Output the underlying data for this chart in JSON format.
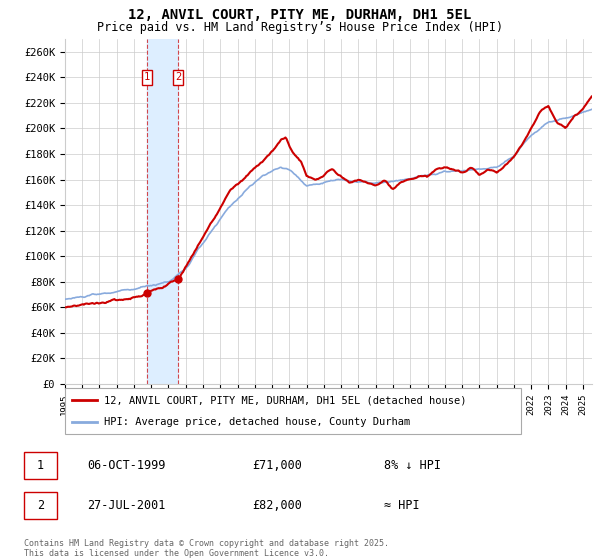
{
  "title": "12, ANVIL COURT, PITY ME, DURHAM, DH1 5EL",
  "subtitle": "Price paid vs. HM Land Registry’s House Price Index (HPI)",
  "title_fontsize": 10,
  "subtitle_fontsize": 8.5,
  "ylabel_ticks": [
    "£0",
    "£20K",
    "£40K",
    "£60K",
    "£80K",
    "£100K",
    "£120K",
    "£140K",
    "£160K",
    "£180K",
    "£200K",
    "£220K",
    "£240K",
    "£260K"
  ],
  "ytick_values": [
    0,
    20000,
    40000,
    60000,
    80000,
    100000,
    120000,
    140000,
    160000,
    180000,
    200000,
    220000,
    240000,
    260000
  ],
  "ylim": [
    0,
    270000
  ],
  "xlim_start": 1995.0,
  "xlim_end": 2025.5,
  "transaction1_x": 1999.76,
  "transaction1_y": 71000,
  "transaction1_label": "1",
  "transaction2_x": 2001.57,
  "transaction2_y": 82000,
  "transaction2_label": "2",
  "legend_line1": "12, ANVIL COURT, PITY ME, DURHAM, DH1 5EL (detached house)",
  "legend_line2": "HPI: Average price, detached house, County Durham",
  "table_row1": [
    "1",
    "06-OCT-1999",
    "£71,000",
    "8% ↓ HPI"
  ],
  "table_row2": [
    "2",
    "27-JUL-2001",
    "£82,000",
    "≈ HPI"
  ],
  "footer": "Contains HM Land Registry data © Crown copyright and database right 2025.\nThis data is licensed under the Open Government Licence v3.0.",
  "line_color_property": "#cc0000",
  "line_color_hpi": "#88aadd",
  "shade_color": "#ddeeff",
  "marker_color": "#cc0000",
  "grid_color": "#cccccc",
  "background_color": "#ffffff"
}
